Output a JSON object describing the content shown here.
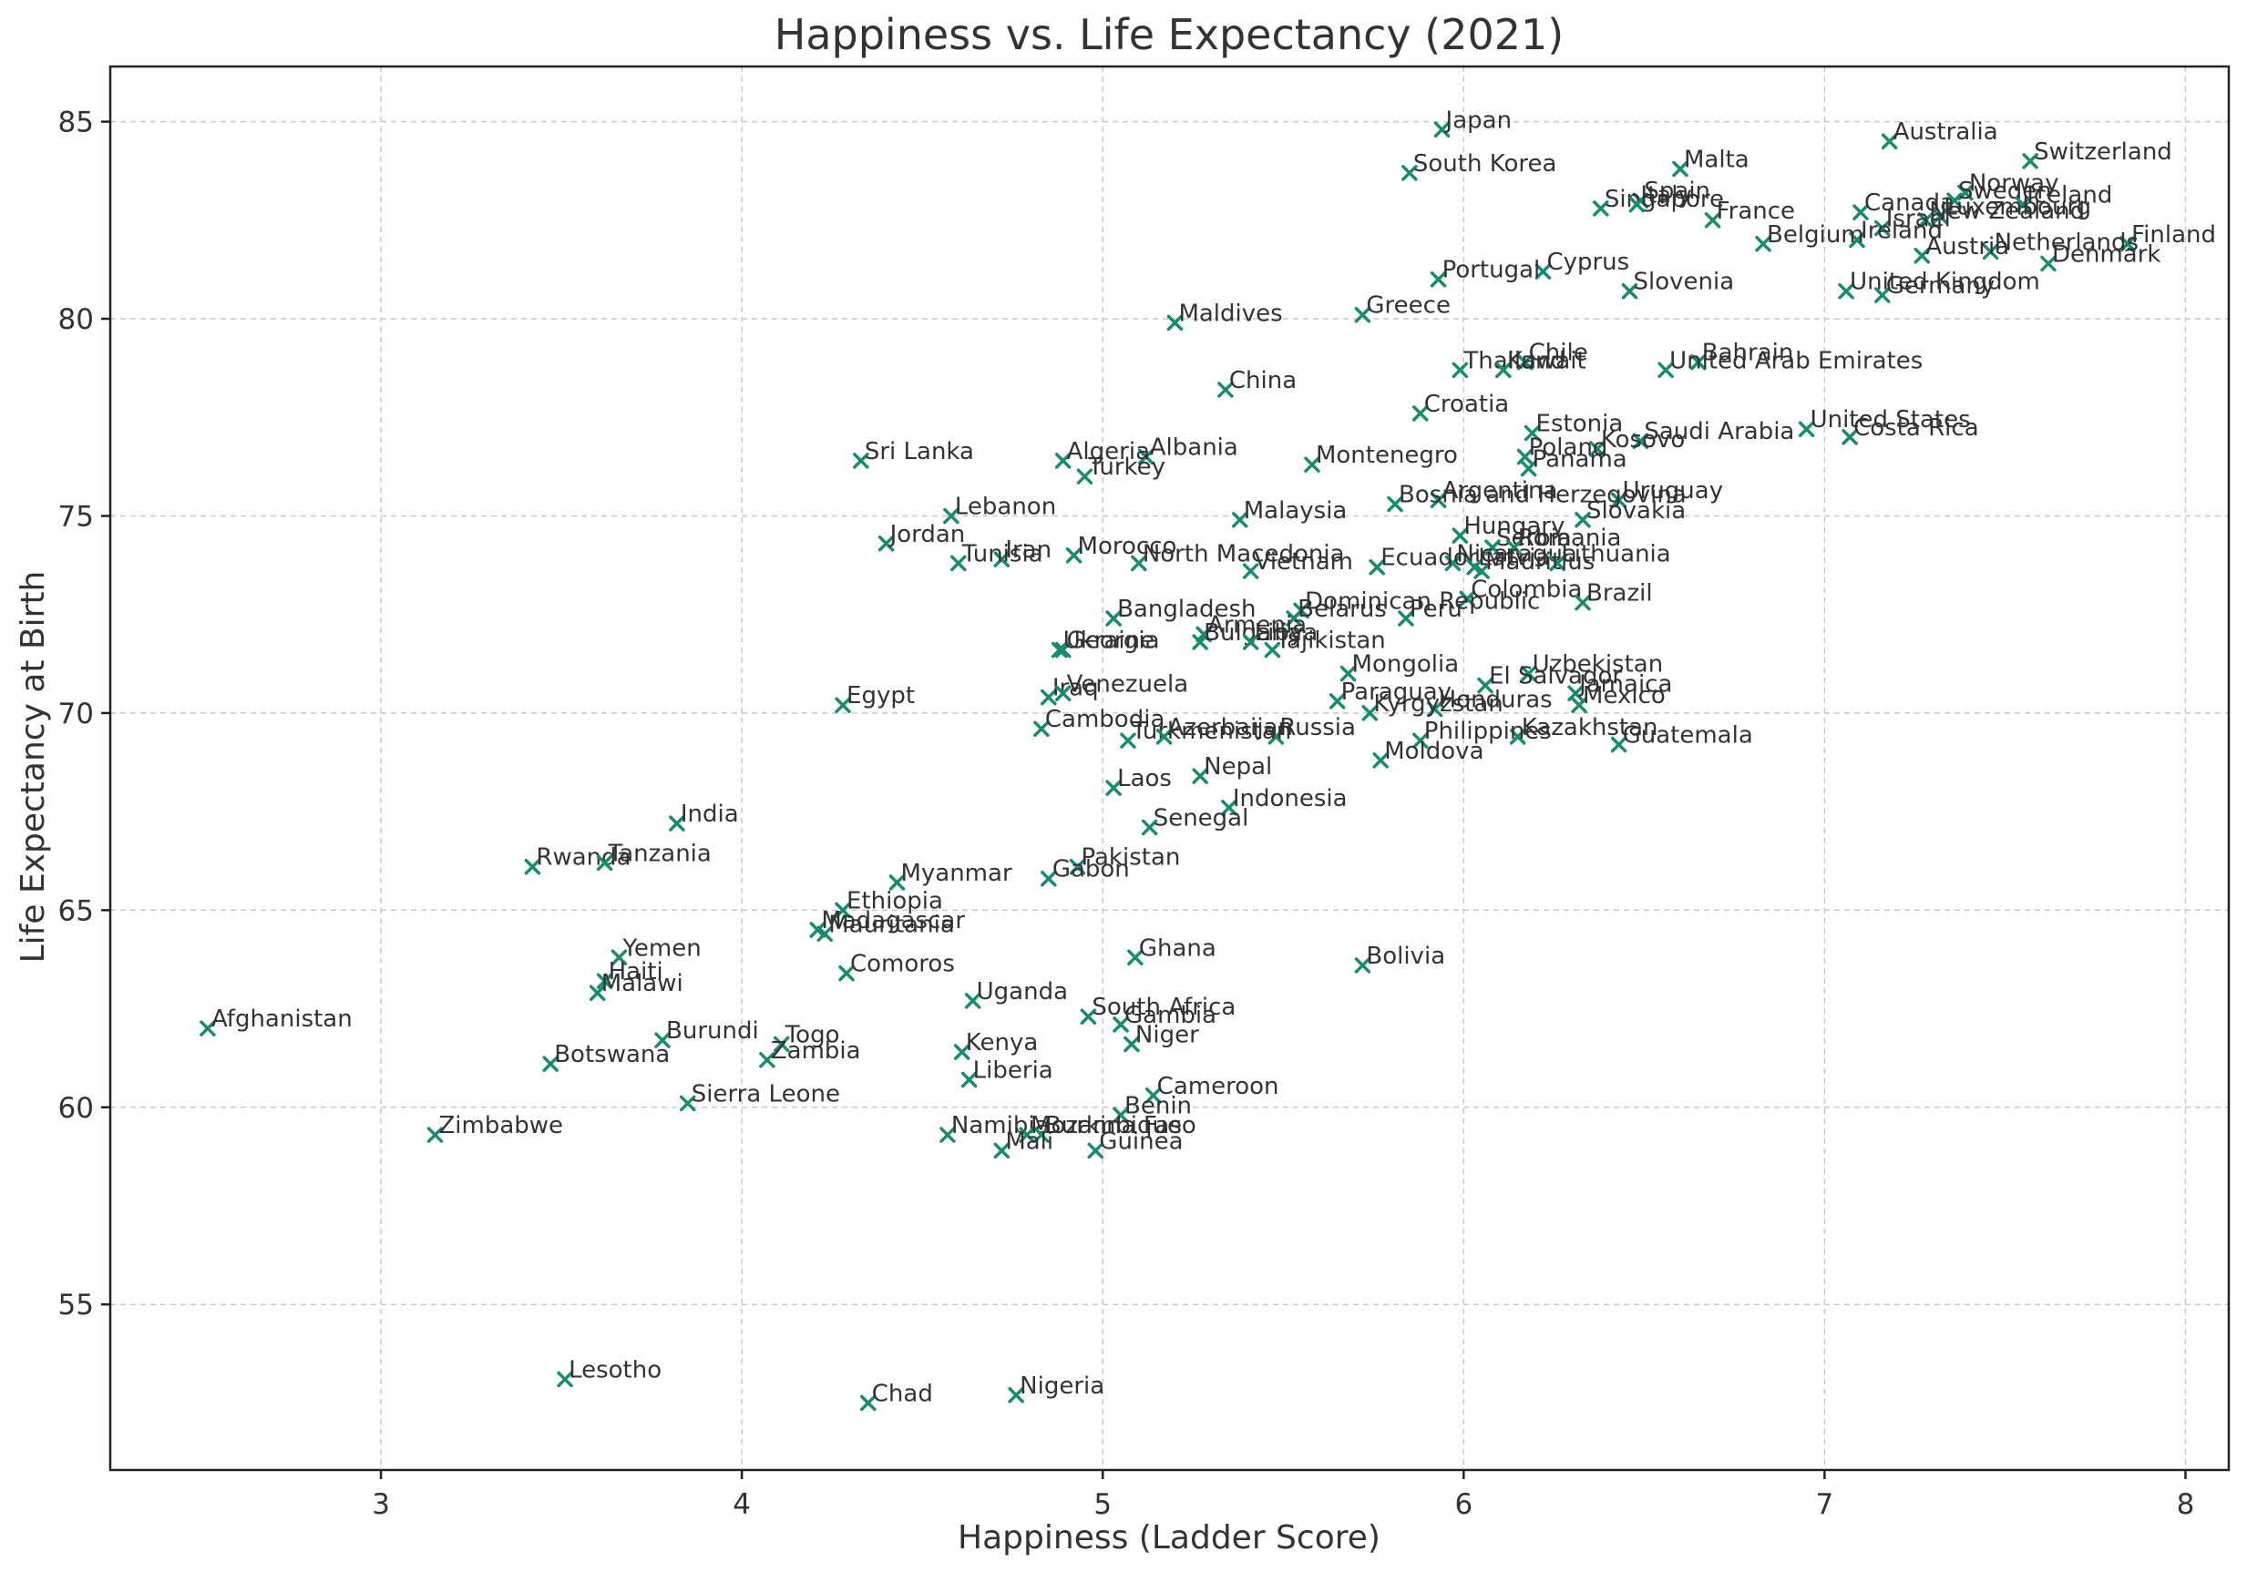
{
  "chart_data": {
    "type": "scatter",
    "title": "Happiness vs. Life Expectancy (2021)",
    "xlabel": "Happiness (Ladder Score)",
    "ylabel": "Life Expectancy at Birth",
    "xlim": [
      2.25,
      8.12
    ],
    "ylim": [
      50.8,
      86.4
    ],
    "xticks": [
      3,
      4,
      5,
      6,
      7,
      8
    ],
    "yticks": [
      55,
      60,
      65,
      70,
      75,
      80,
      85
    ],
    "grid": true,
    "marker_color": "#1b8a6e",
    "points": [
      {
        "label": "Japan",
        "x": 5.94,
        "y": 84.8
      },
      {
        "label": "Australia",
        "x": 7.18,
        "y": 84.5
      },
      {
        "label": "Switzerland",
        "x": 7.57,
        "y": 84.0
      },
      {
        "label": "Malta",
        "x": 6.6,
        "y": 83.8
      },
      {
        "label": "South Korea",
        "x": 5.85,
        "y": 83.7
      },
      {
        "label": "Norway",
        "x": 7.39,
        "y": 83.2
      },
      {
        "label": "Sweden",
        "x": 7.36,
        "y": 83.0
      },
      {
        "label": "Iceland",
        "x": 7.55,
        "y": 82.9
      },
      {
        "label": "Spain",
        "x": 6.49,
        "y": 83.0
      },
      {
        "label": "Singapore",
        "x": 6.38,
        "y": 82.8
      },
      {
        "label": "Italy",
        "x": 6.48,
        "y": 82.9
      },
      {
        "label": "Canada",
        "x": 7.1,
        "y": 82.7
      },
      {
        "label": "Luxembourg",
        "x": 7.32,
        "y": 82.6
      },
      {
        "label": "New Zealand",
        "x": 7.28,
        "y": 82.5
      },
      {
        "label": "France",
        "x": 6.69,
        "y": 82.5
      },
      {
        "label": "Israel",
        "x": 7.16,
        "y": 82.3
      },
      {
        "label": "Ireland",
        "x": 7.09,
        "y": 82.0
      },
      {
        "label": "Belgium",
        "x": 6.83,
        "y": 81.9
      },
      {
        "label": "Finland",
        "x": 7.84,
        "y": 81.9
      },
      {
        "label": "Netherlands",
        "x": 7.46,
        "y": 81.7
      },
      {
        "label": "Austria",
        "x": 7.27,
        "y": 81.6
      },
      {
        "label": "Denmark",
        "x": 7.62,
        "y": 81.4
      },
      {
        "label": "Cyprus",
        "x": 6.22,
        "y": 81.2
      },
      {
        "label": "Portugal",
        "x": 5.93,
        "y": 81.0
      },
      {
        "label": "Slovenia",
        "x": 6.46,
        "y": 80.7
      },
      {
        "label": "United Kingdom",
        "x": 7.06,
        "y": 80.7
      },
      {
        "label": "Germany",
        "x": 7.16,
        "y": 80.6
      },
      {
        "label": "Greece",
        "x": 5.72,
        "y": 80.1
      },
      {
        "label": "Maldives",
        "x": 5.2,
        "y": 79.9
      },
      {
        "label": "Chile",
        "x": 6.17,
        "y": 78.9
      },
      {
        "label": "Bahrain",
        "x": 6.65,
        "y": 78.9
      },
      {
        "label": "Thailand",
        "x": 5.99,
        "y": 78.7
      },
      {
        "label": "Kuwait",
        "x": 6.11,
        "y": 78.7
      },
      {
        "label": "United Arab Emirates",
        "x": 6.56,
        "y": 78.7
      },
      {
        "label": "China",
        "x": 5.34,
        "y": 78.2
      },
      {
        "label": "Croatia",
        "x": 5.88,
        "y": 77.6
      },
      {
        "label": "United States",
        "x": 6.95,
        "y": 77.2
      },
      {
        "label": "Estonia",
        "x": 6.19,
        "y": 77.1
      },
      {
        "label": "Costa Rica",
        "x": 7.07,
        "y": 77.0
      },
      {
        "label": "Saudi Arabia",
        "x": 6.49,
        "y": 76.9
      },
      {
        "label": "Kosovo",
        "x": 6.37,
        "y": 76.7
      },
      {
        "label": "Poland",
        "x": 6.17,
        "y": 76.5
      },
      {
        "label": "Albania",
        "x": 5.12,
        "y": 76.5
      },
      {
        "label": "Sri Lanka",
        "x": 4.33,
        "y": 76.4
      },
      {
        "label": "Algeria",
        "x": 4.89,
        "y": 76.4
      },
      {
        "label": "Montenegro",
        "x": 5.58,
        "y": 76.3
      },
      {
        "label": "Panama",
        "x": 6.18,
        "y": 76.2
      },
      {
        "label": "Turkey",
        "x": 4.95,
        "y": 76.0
      },
      {
        "label": "Argentina",
        "x": 5.93,
        "y": 75.4
      },
      {
        "label": "Uruguay",
        "x": 6.43,
        "y": 75.4
      },
      {
        "label": "Bosnia and Herzegovina",
        "x": 5.81,
        "y": 75.3
      },
      {
        "label": "Lebanon",
        "x": 4.58,
        "y": 75.0
      },
      {
        "label": "Malaysia",
        "x": 5.38,
        "y": 74.9
      },
      {
        "label": "Slovakia",
        "x": 6.33,
        "y": 74.9
      },
      {
        "label": "Hungary",
        "x": 5.99,
        "y": 74.5
      },
      {
        "label": "Jordan",
        "x": 4.4,
        "y": 74.3
      },
      {
        "label": "Serbia",
        "x": 6.08,
        "y": 74.2
      },
      {
        "label": "Romania",
        "x": 6.14,
        "y": 74.2
      },
      {
        "label": "Morocco",
        "x": 4.92,
        "y": 74.0
      },
      {
        "label": "Iran",
        "x": 4.72,
        "y": 73.9
      },
      {
        "label": "North Macedonia",
        "x": 5.1,
        "y": 73.8
      },
      {
        "label": "Tunisia",
        "x": 4.6,
        "y": 73.8
      },
      {
        "label": "Nicaragua",
        "x": 5.97,
        "y": 73.8
      },
      {
        "label": "Lithuania",
        "x": 6.26,
        "y": 73.8
      },
      {
        "label": "Ecuador",
        "x": 5.76,
        "y": 73.7
      },
      {
        "label": "Latvia",
        "x": 6.03,
        "y": 73.7
      },
      {
        "label": "Mauritius",
        "x": 6.05,
        "y": 73.6
      },
      {
        "label": "Vietnam",
        "x": 5.41,
        "y": 73.6
      },
      {
        "label": "Colombia",
        "x": 6.01,
        "y": 72.9
      },
      {
        "label": "Brazil",
        "x": 6.33,
        "y": 72.8
      },
      {
        "label": "Dominican Republic",
        "x": 5.55,
        "y": 72.6
      },
      {
        "label": "Bangladesh",
        "x": 5.03,
        "y": 72.4
      },
      {
        "label": "Belarus",
        "x": 5.53,
        "y": 72.4
      },
      {
        "label": "Peru",
        "x": 5.84,
        "y": 72.4
      },
      {
        "label": "Armenia",
        "x": 5.28,
        "y": 72.0
      },
      {
        "label": "Bulgaria",
        "x": 5.27,
        "y": 71.8
      },
      {
        "label": "Libya",
        "x": 5.41,
        "y": 71.8
      },
      {
        "label": "Georgia",
        "x": 4.89,
        "y": 71.6
      },
      {
        "label": "Ukraine",
        "x": 4.88,
        "y": 71.6
      },
      {
        "label": "Tajikistan",
        "x": 5.47,
        "y": 71.6
      },
      {
        "label": "Mongolia",
        "x": 5.68,
        "y": 71.0
      },
      {
        "label": "Uzbekistan",
        "x": 6.18,
        "y": 71.0
      },
      {
        "label": "El Salvador",
        "x": 6.06,
        "y": 70.7
      },
      {
        "label": "Jamaica",
        "x": 6.31,
        "y": 70.5
      },
      {
        "label": "Iraq",
        "x": 4.85,
        "y": 70.4
      },
      {
        "label": "Venezuela",
        "x": 4.89,
        "y": 70.5
      },
      {
        "label": "Paraguay",
        "x": 5.65,
        "y": 70.3
      },
      {
        "label": "Honduras",
        "x": 5.92,
        "y": 70.1
      },
      {
        "label": "Mexico",
        "x": 6.32,
        "y": 70.2
      },
      {
        "label": "Egypt",
        "x": 4.28,
        "y": 70.2
      },
      {
        "label": "Kyrgyzstan",
        "x": 5.74,
        "y": 70.0
      },
      {
        "label": "Cambodia",
        "x": 4.83,
        "y": 69.6
      },
      {
        "label": "Kazakhstan",
        "x": 6.15,
        "y": 69.4
      },
      {
        "label": "Russia",
        "x": 5.48,
        "y": 69.4
      },
      {
        "label": "Turkmenistan",
        "x": 5.07,
        "y": 69.3
      },
      {
        "label": "Azerbaijan",
        "x": 5.17,
        "y": 69.4
      },
      {
        "label": "Philippines",
        "x": 5.88,
        "y": 69.3
      },
      {
        "label": "Guatemala",
        "x": 6.43,
        "y": 69.2
      },
      {
        "label": "Moldova",
        "x": 5.77,
        "y": 68.8
      },
      {
        "label": "Nepal",
        "x": 5.27,
        "y": 68.4
      },
      {
        "label": "Laos",
        "x": 5.03,
        "y": 68.1
      },
      {
        "label": "Indonesia",
        "x": 5.35,
        "y": 67.6
      },
      {
        "label": "India",
        "x": 3.82,
        "y": 67.2
      },
      {
        "label": "Senegal",
        "x": 5.13,
        "y": 67.1
      },
      {
        "label": "Rwanda",
        "x": 3.42,
        "y": 66.1
      },
      {
        "label": "Tanzania",
        "x": 3.62,
        "y": 66.2
      },
      {
        "label": "Pakistan",
        "x": 4.93,
        "y": 66.1
      },
      {
        "label": "Gabon",
        "x": 4.85,
        "y": 65.8
      },
      {
        "label": "Myanmar",
        "x": 4.43,
        "y": 65.7
      },
      {
        "label": "Ethiopia",
        "x": 4.28,
        "y": 65.0
      },
      {
        "label": "Madagascar",
        "x": 4.21,
        "y": 64.5
      },
      {
        "label": "Mauritania",
        "x": 4.23,
        "y": 64.4
      },
      {
        "label": "Ghana",
        "x": 5.09,
        "y": 63.8
      },
      {
        "label": "Yemen",
        "x": 3.66,
        "y": 63.8
      },
      {
        "label": "Bolivia",
        "x": 5.72,
        "y": 63.6
      },
      {
        "label": "Comoros",
        "x": 4.29,
        "y": 63.4
      },
      {
        "label": "Haiti",
        "x": 3.62,
        "y": 63.2
      },
      {
        "label": "Malawi",
        "x": 3.6,
        "y": 62.9
      },
      {
        "label": "Uganda",
        "x": 4.64,
        "y": 62.7
      },
      {
        "label": "Afghanistan",
        "x": 2.52,
        "y": 62.0
      },
      {
        "label": "South Africa",
        "x": 4.96,
        "y": 62.3
      },
      {
        "label": "Gambia",
        "x": 5.05,
        "y": 62.1
      },
      {
        "label": "Burundi",
        "x": 3.78,
        "y": 61.7
      },
      {
        "label": "Togo",
        "x": 4.11,
        "y": 61.6
      },
      {
        "label": "Niger",
        "x": 5.08,
        "y": 61.6
      },
      {
        "label": "Kenya",
        "x": 4.61,
        "y": 61.4
      },
      {
        "label": "Zambia",
        "x": 4.07,
        "y": 61.2
      },
      {
        "label": "Botswana",
        "x": 3.47,
        "y": 61.1
      },
      {
        "label": "Liberia",
        "x": 4.63,
        "y": 60.7
      },
      {
        "label": "Cameroon",
        "x": 5.14,
        "y": 60.3
      },
      {
        "label": "Sierra Leone",
        "x": 3.85,
        "y": 60.1
      },
      {
        "label": "Benin",
        "x": 5.05,
        "y": 59.8
      },
      {
        "label": "Zimbabwe",
        "x": 3.15,
        "y": 59.3
      },
      {
        "label": "Namibia",
        "x": 4.57,
        "y": 59.3
      },
      {
        "label": "Burkina Faso",
        "x": 4.83,
        "y": 59.3
      },
      {
        "label": "Mozambique",
        "x": 4.79,
        "y": 59.3
      },
      {
        "label": "Mali",
        "x": 4.72,
        "y": 58.9
      },
      {
        "label": "Guinea",
        "x": 4.98,
        "y": 58.9
      },
      {
        "label": "Lesotho",
        "x": 3.51,
        "y": 53.1
      },
      {
        "label": "Nigeria",
        "x": 4.76,
        "y": 52.7
      },
      {
        "label": "Chad",
        "x": 4.35,
        "y": 52.5
      }
    ]
  }
}
